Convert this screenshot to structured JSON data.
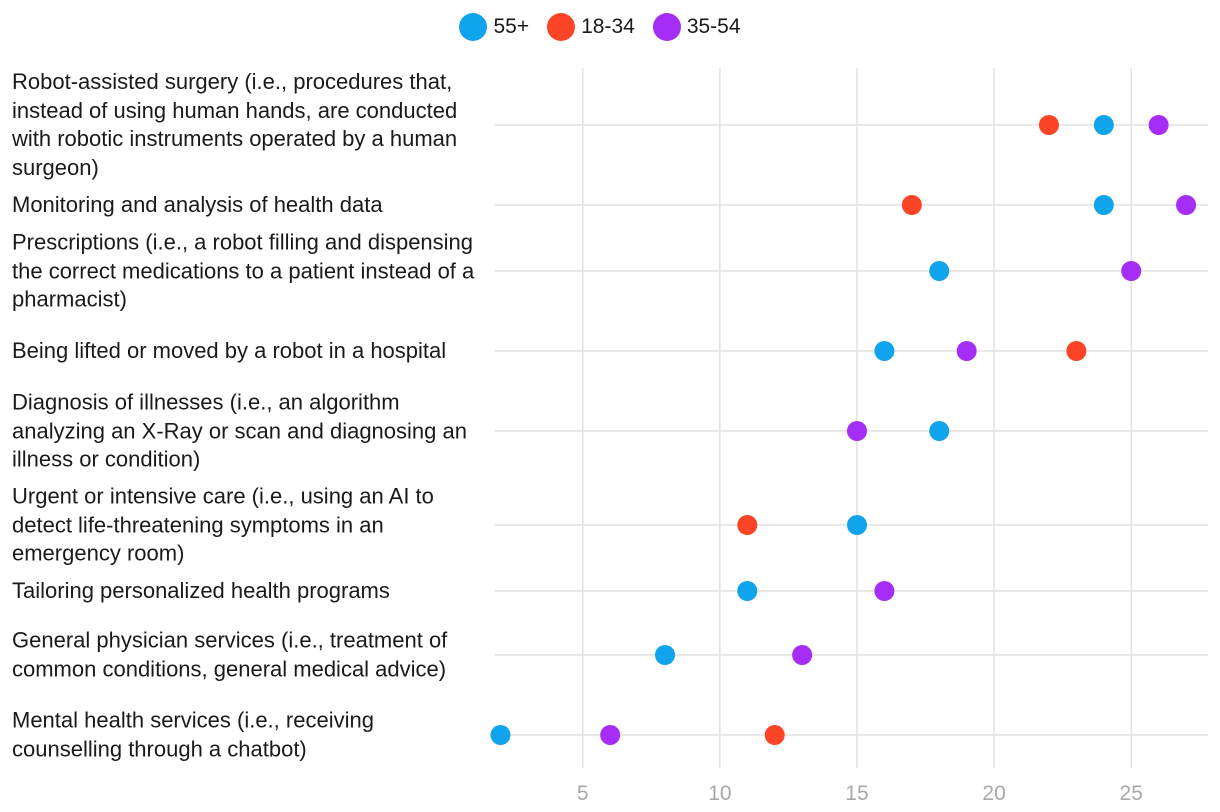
{
  "chart_data": {
    "type": "scatter",
    "categories": [
      "Robot-assisted surgery (i.e., procedures that, instead of using human hands, are conducted with robotic instruments operated by a human surgeon)",
      "Monitoring and analysis of health data",
      "Prescriptions (i.e., a robot filling and dispensing the correct medications to a patient instead of a pharmacist)",
      "Being lifted or moved by a robot in a hospital",
      "Diagnosis of illnesses (i.e., an algorithm analyzing an X-Ray or scan and diagnosing an illness or condition)",
      "Urgent or intensive care (i.e., using an AI to detect life-threatening symptoms in an emergency room)",
      "Tailoring personalized health programs",
      "General physician services (i.e., treatment of common conditions, general medical advice)",
      "Mental health services (i.e., receiving counselling through a chatbot)"
    ],
    "series": [
      {
        "name": "55+",
        "color": "#0fa4ec",
        "values": [
          24,
          24,
          18,
          16,
          18,
          15,
          11,
          8,
          2
        ]
      },
      {
        "name": "18-34",
        "color": "#fc4526",
        "values": [
          22,
          17,
          null,
          23,
          null,
          11,
          null,
          null,
          12
        ]
      },
      {
        "name": "35-54",
        "color": "#a62df5",
        "values": [
          26,
          27,
          25,
          19,
          15,
          null,
          16,
          13,
          6
        ]
      }
    ],
    "xticks": [
      5,
      10,
      15,
      20,
      25
    ],
    "xlim": [
      1.8,
      27.8
    ],
    "grid": true,
    "legend_position": "top-center",
    "title": "",
    "xlabel": "",
    "ylabel": ""
  }
}
